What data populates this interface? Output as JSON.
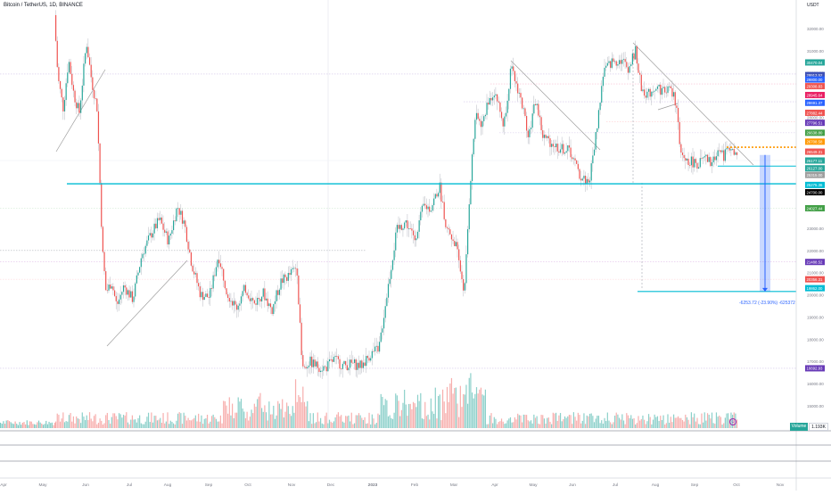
{
  "header": {
    "title": "Bitcoin / TetherUS, 1D, BINANCE",
    "currency": "USDT"
  },
  "volume": {
    "label": "Volume",
    "value": "1.193K"
  },
  "measure": {
    "label": "-6253.72 (-23.90%) -625372"
  },
  "icons": {
    "volume_icon": "emoji-icon"
  },
  "colors": {
    "up": "#26a69a",
    "down": "#ef5350",
    "support": "#00bcd4",
    "measure": "#2962ff"
  },
  "chart_data": {
    "type": "candlestick",
    "title": "Bitcoin / TetherUS, 1D, BINANCE",
    "ylim": [
      15000,
      33000
    ],
    "x_range": [
      "2022-04",
      "2023-11"
    ],
    "x_ticks": [
      "Apr",
      "May",
      "Jun",
      "Jul",
      "Aug",
      "Sep",
      "Oct",
      "Nov",
      "Dec",
      "2023",
      "Feb",
      "Mar",
      "Apr",
      "May",
      "Jun",
      "Jul",
      "Aug",
      "Sep",
      "Oct",
      "Nov"
    ],
    "y_ticks": [
      "33000.00",
      "32000.00",
      "31000.00",
      "30000.00",
      "29000.00",
      "28000.00",
      "27000.00",
      "26000.00",
      "25000.00",
      "24000.00",
      "23000.00",
      "22000.00",
      "21000.00",
      "20000.00",
      "19000.00",
      "18000.00",
      "17000.00",
      "16000.00",
      "15000.00"
    ],
    "price_badges": [
      {
        "label": "30470.04",
        "value": 30470,
        "color": "#26a69a"
      },
      {
        "label": "29913.52",
        "value": 29900,
        "color": "#3f51b5"
      },
      {
        "label": "29800.00",
        "value": 29700,
        "color": "#2962ff"
      },
      {
        "label": "29308.83",
        "value": 29400,
        "color": "#ef5350"
      },
      {
        "label": "28945.64",
        "value": 29000,
        "color": "#e91e63"
      },
      {
        "label": "28691.37",
        "value": 28650,
        "color": "#2962ff"
      },
      {
        "label": "27882.44",
        "value": 28200,
        "color": "#ef5350"
      },
      {
        "label": "27796.51",
        "value": 27750,
        "color": "#673ab7"
      },
      {
        "label": "26638.80",
        "value": 27300,
        "color": "#43a047"
      },
      {
        "label": "26708.58",
        "value": 26900,
        "color": "#ff9800"
      },
      {
        "label": "26549.31",
        "value": 26450,
        "color": "#ef5350"
      },
      {
        "label": "26177.11",
        "value": 26050,
        "color": "#26a69a"
      },
      {
        "label": "26127.00",
        "value": 25700,
        "color": "#26a69a"
      },
      {
        "label": "25315.00",
        "value": 25400,
        "color": "#9e9e9e"
      },
      {
        "label": "25275.36",
        "value": 24950,
        "color": "#00bcd4"
      },
      {
        "label": "24700.00",
        "value": 24620,
        "color": "#000000"
      },
      {
        "label": "24027.44",
        "value": 23900,
        "color": "#43a047"
      },
      {
        "label": "21488.52",
        "value": 21480,
        "color": "#673ab7"
      },
      {
        "label": "20356.31",
        "value": 20700,
        "color": "#ef5350"
      },
      {
        "label": "19862.00",
        "value": 20300,
        "color": "#00bcd4"
      },
      {
        "label": "16692.93",
        "value": 16690,
        "color": "#673ab7"
      }
    ],
    "support_lines": [
      25000,
      20150
    ],
    "dashed_level": 26650,
    "measure": {
      "from": 26300,
      "to": 20150
    }
  }
}
